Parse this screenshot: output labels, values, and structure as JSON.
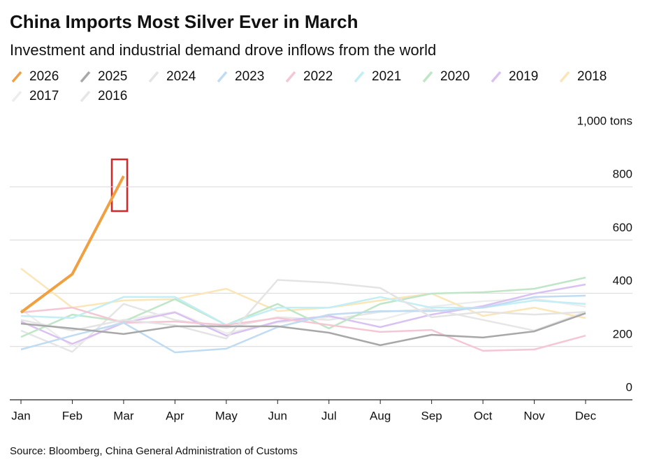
{
  "chart_data": {
    "type": "line",
    "title": "China Imports Most Silver Ever in March",
    "subtitle": "Investment and industrial demand drove inflows from the world",
    "source": "Source: Bloomberg, China General Administration of Customs",
    "categories": [
      "Jan",
      "Feb",
      "Mar",
      "Apr",
      "May",
      "Jun",
      "Jul",
      "Aug",
      "Sep",
      "Oct",
      "Nov",
      "Dec"
    ],
    "series": [
      {
        "name": "2026",
        "color": "#f0a040",
        "values": [
          328,
          472,
          840,
          null,
          null,
          null,
          null,
          null,
          null,
          null,
          null,
          null
        ]
      },
      {
        "name": "2025",
        "color": "#a8a8a8",
        "values": [
          286,
          268,
          247,
          276,
          276,
          276,
          252,
          205,
          244,
          234,
          257,
          325
        ]
      },
      {
        "name": "2024",
        "color": "#e4e4e4",
        "values": [
          300,
          260,
          300,
          280,
          230,
          450,
          440,
          420,
          310,
          330,
          320,
          330
        ]
      },
      {
        "name": "2023",
        "color": "#c0dcf2",
        "values": [
          189,
          241,
          289,
          178,
          192,
          273,
          320,
          333,
          333,
          346,
          386,
          391
        ]
      },
      {
        "name": "2022",
        "color": "#f5c6d4",
        "values": [
          328,
          346,
          289,
          294,
          281,
          307,
          281,
          255,
          262,
          184,
          189,
          241
        ]
      },
      {
        "name": "2021",
        "color": "#c2eef5",
        "values": [
          315,
          307,
          386,
          386,
          281,
          346,
          346,
          386,
          346,
          346,
          373,
          360
        ]
      },
      {
        "name": "2020",
        "color": "#bfe6c6",
        "values": [
          236,
          320,
          294,
          378,
          281,
          360,
          268,
          360,
          399,
          404,
          417,
          459
        ]
      },
      {
        "name": "2019",
        "color": "#d9c2f2",
        "values": [
          294,
          210,
          289,
          328,
          241,
          294,
          315,
          273,
          320,
          352,
          399,
          433
        ]
      },
      {
        "name": "2018",
        "color": "#fbe6b8",
        "values": [
          493,
          346,
          373,
          378,
          417,
          333,
          346,
          373,
          399,
          315,
          346,
          307
        ]
      },
      {
        "name": "2017",
        "color": "#ededed",
        "values": [
          340,
          200,
          300,
          330,
          250,
          290,
          310,
          300,
          350,
          370,
          380,
          350
        ]
      },
      {
        "name": "2016",
        "color": "#e6e6e6",
        "values": [
          260,
          180,
          360,
          300,
          270,
          310,
          300,
          330,
          340,
          300,
          260,
          330
        ]
      }
    ],
    "ylim": [
      0,
      1000
    ],
    "yticks": [
      0,
      200,
      400,
      600,
      800,
      {
        "value": 1000,
        "label": "1,000 tons"
      }
    ],
    "grid": true
  }
}
